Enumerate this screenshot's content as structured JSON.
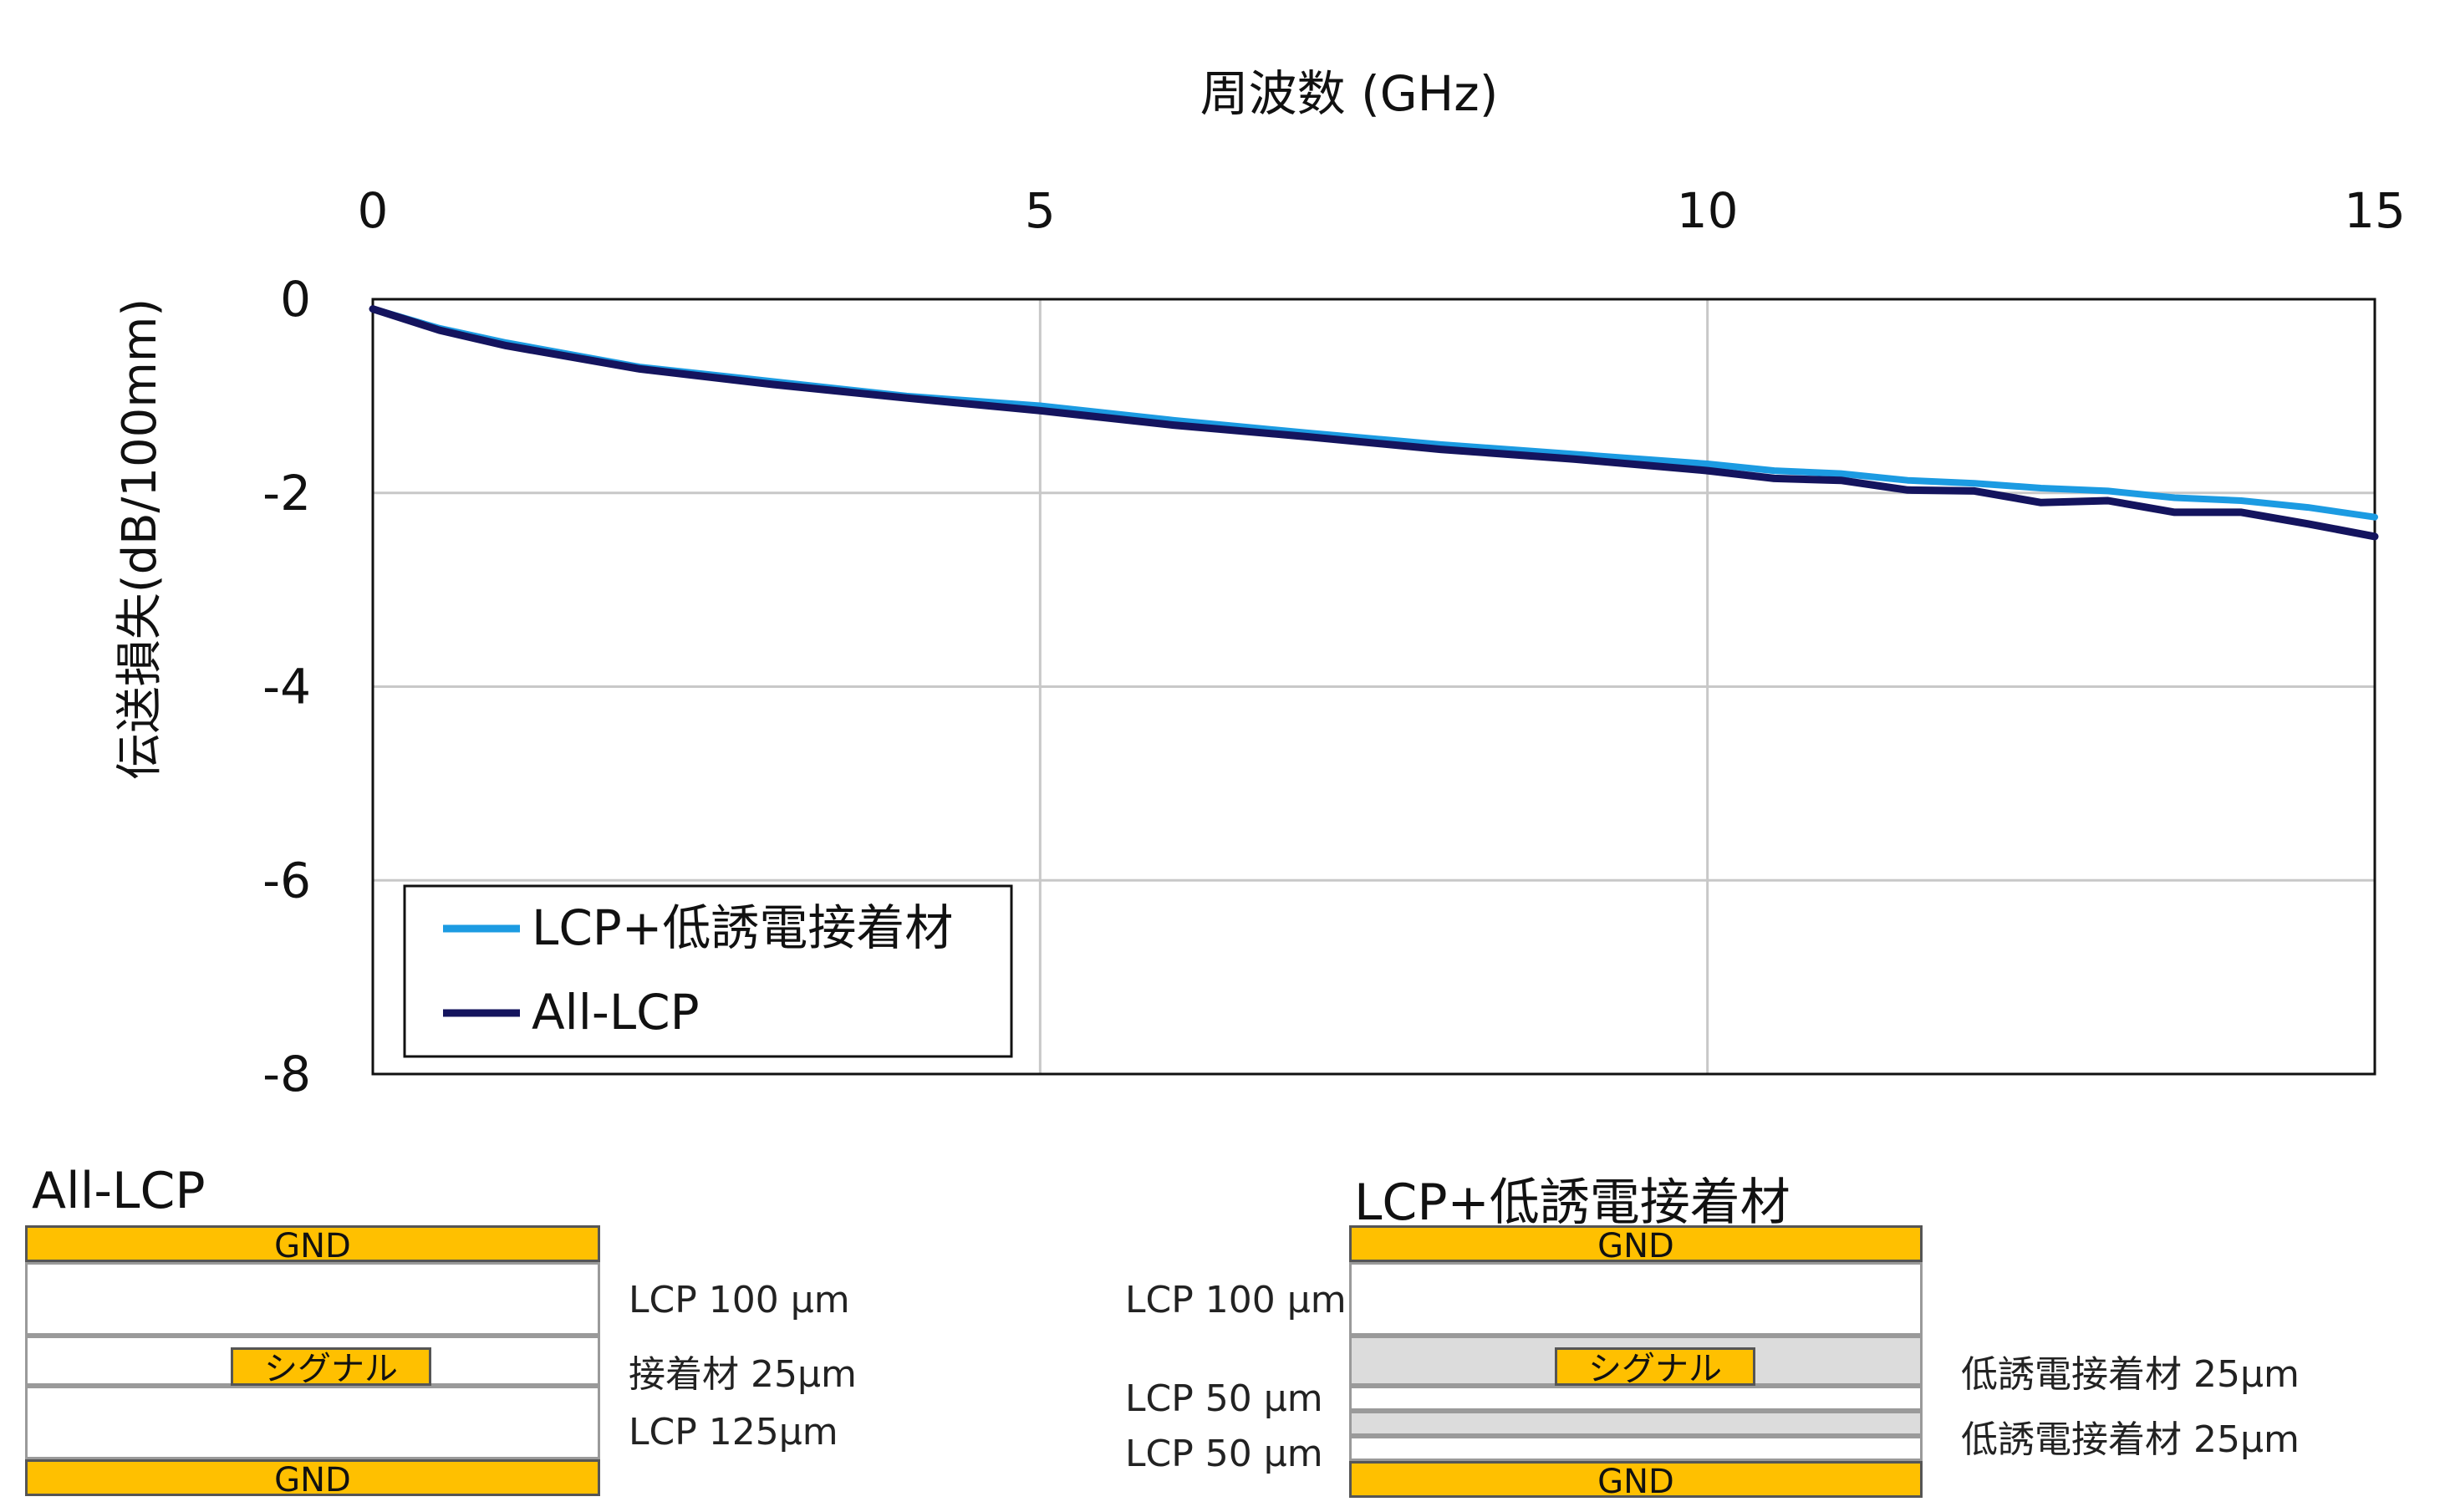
{
  "chart_data": {
    "type": "line",
    "xlabel": "周波数 (GHz)",
    "ylabel": "伝送損失(dB/100mm)",
    "xlim": [
      0,
      15
    ],
    "ylim": [
      -8,
      0
    ],
    "x_ticks": [
      "0",
      "5",
      "10",
      "15"
    ],
    "y_ticks": [
      "0",
      "-2",
      "-4",
      "-6",
      "-8"
    ],
    "grid": true,
    "legend_position": "bottom-left",
    "series": [
      {
        "name": "LCP+低誘電接着材",
        "color": "#1C9BE2",
        "x": [
          0,
          0.5,
          1,
          2,
          3,
          4,
          5,
          6,
          7,
          8,
          9,
          10,
          10.5,
          11,
          11.5,
          12,
          12.5,
          13,
          13.5,
          14,
          14.5,
          15
        ],
        "y": [
          -0.1,
          -0.3,
          -0.45,
          -0.7,
          -0.85,
          -1.0,
          -1.1,
          -1.25,
          -1.38,
          -1.5,
          -1.6,
          -1.7,
          -1.77,
          -1.8,
          -1.87,
          -1.9,
          -1.95,
          -1.98,
          -2.05,
          -2.08,
          -2.15,
          -2.25
        ]
      },
      {
        "name": "All-LCP",
        "color": "#14145E",
        "x": [
          0,
          0.5,
          1,
          2,
          3,
          4,
          5,
          6,
          7,
          8,
          9,
          10,
          10.5,
          11,
          11.5,
          12,
          12.5,
          13,
          13.5,
          14,
          14.5,
          15
        ],
        "y": [
          -0.1,
          -0.32,
          -0.48,
          -0.72,
          -0.88,
          -1.02,
          -1.15,
          -1.3,
          -1.42,
          -1.55,
          -1.65,
          -1.77,
          -1.85,
          -1.87,
          -1.97,
          -1.98,
          -2.1,
          -2.08,
          -2.2,
          -2.2,
          -2.32,
          -2.45
        ]
      }
    ]
  },
  "diagram_left": {
    "title": "All-LCP",
    "gnd_top": "GND",
    "signal": "シグナル",
    "gnd_bottom": "GND",
    "layer_labels": [
      "LCP 100 µm",
      "接着材 25µm",
      "LCP 125µm"
    ]
  },
  "diagram_right": {
    "title": "LCP+低誘電接着材",
    "gnd_top": "GND",
    "signal": "シグナル",
    "gnd_bottom": "GND",
    "left_labels": [
      "LCP 100 µm",
      "LCP 50 µm",
      "LCP 50 µm"
    ],
    "right_labels": [
      "低誘電接着材 25µm",
      "低誘電接着材 25µm"
    ]
  }
}
